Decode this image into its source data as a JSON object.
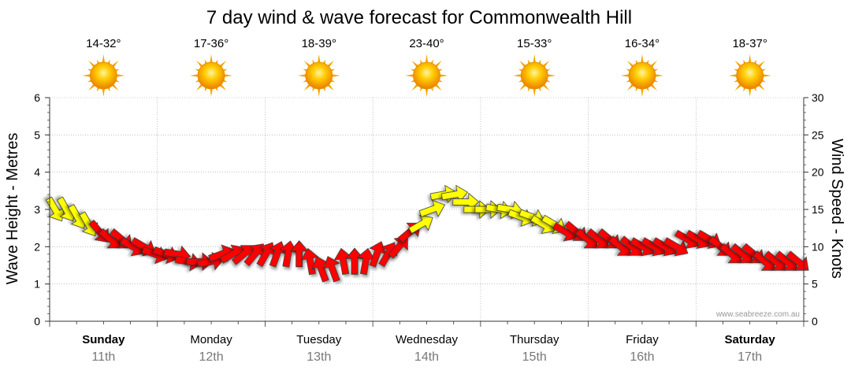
{
  "chart_data": {
    "type": "arrow-series",
    "title": "7 day wind & wave forecast for Commonwealth Hill",
    "ylabel_left": "Wave Height - Metres",
    "ylabel_right": "Wind Speed - Knots",
    "ylim_left": [
      0,
      6
    ],
    "ylim_right": [
      0,
      30
    ],
    "yticks_left": [
      "0",
      "1",
      "2",
      "3",
      "4",
      "5",
      "6"
    ],
    "yticks_right": [
      "0",
      "5",
      "10",
      "15",
      "20",
      "25",
      "30"
    ],
    "grid": true,
    "credit": "www.seabreeze.com.au",
    "days": [
      {
        "name": "Sunday",
        "date": "11th",
        "bold": true,
        "temp": "14-32°",
        "icon": "sun-icon"
      },
      {
        "name": "Monday",
        "date": "12th",
        "bold": false,
        "temp": "17-36°",
        "icon": "sun-icon"
      },
      {
        "name": "Tuesday",
        "date": "13th",
        "bold": false,
        "temp": "18-39°",
        "icon": "sun-icon"
      },
      {
        "name": "Wednesday",
        "date": "14th",
        "bold": false,
        "temp": "23-40°",
        "icon": "sun-icon"
      },
      {
        "name": "Thursday",
        "date": "15th",
        "bold": false,
        "temp": "15-33°",
        "icon": "sun-icon"
      },
      {
        "name": "Friday",
        "date": "16th",
        "bold": false,
        "temp": "16-34°",
        "icon": "sun-icon"
      },
      {
        "name": "Saturday",
        "date": "17th",
        "bold": true,
        "temp": "18-37°",
        "icon": "sun-icon"
      }
    ],
    "series": [
      {
        "name": "Wind speed (knots), 3-hourly, with direction arrows",
        "colors": {
          "strong": "#ffff00",
          "light": "#ff0000",
          "outline": "#333333"
        },
        "strong_threshold_knots": 13,
        "values": [
          15,
          15,
          14,
          13,
          12,
          11,
          11,
          10,
          10,
          9,
          9,
          9,
          8,
          8,
          8,
          9,
          9,
          9,
          9,
          9,
          9,
          9,
          9,
          8,
          7,
          7,
          8,
          8,
          8,
          9,
          9,
          10,
          12,
          13,
          15,
          17,
          17,
          16,
          15,
          15,
          15,
          15,
          14,
          14,
          13,
          13,
          12,
          12,
          11,
          11,
          11,
          10,
          10,
          10,
          10,
          10,
          10,
          11,
          11,
          11,
          10,
          9,
          9,
          9,
          8,
          8,
          8,
          8
        ],
        "direction_deg": [
          330,
          330,
          330,
          330,
          320,
          310,
          310,
          300,
          300,
          290,
          290,
          280,
          280,
          270,
          260,
          250,
          240,
          230,
          220,
          210,
          200,
          190,
          180,
          170,
          160,
          160,
          170,
          180,
          190,
          200,
          210,
          220,
          230,
          240,
          250,
          260,
          260,
          270,
          270,
          270,
          280,
          280,
          290,
          290,
          300,
          300,
          300,
          310,
          310,
          310,
          310,
          310,
          310,
          300,
          300,
          300,
          300,
          300,
          300,
          300,
          310,
          310,
          310,
          310,
          310,
          310,
          310,
          310
        ]
      }
    ]
  }
}
